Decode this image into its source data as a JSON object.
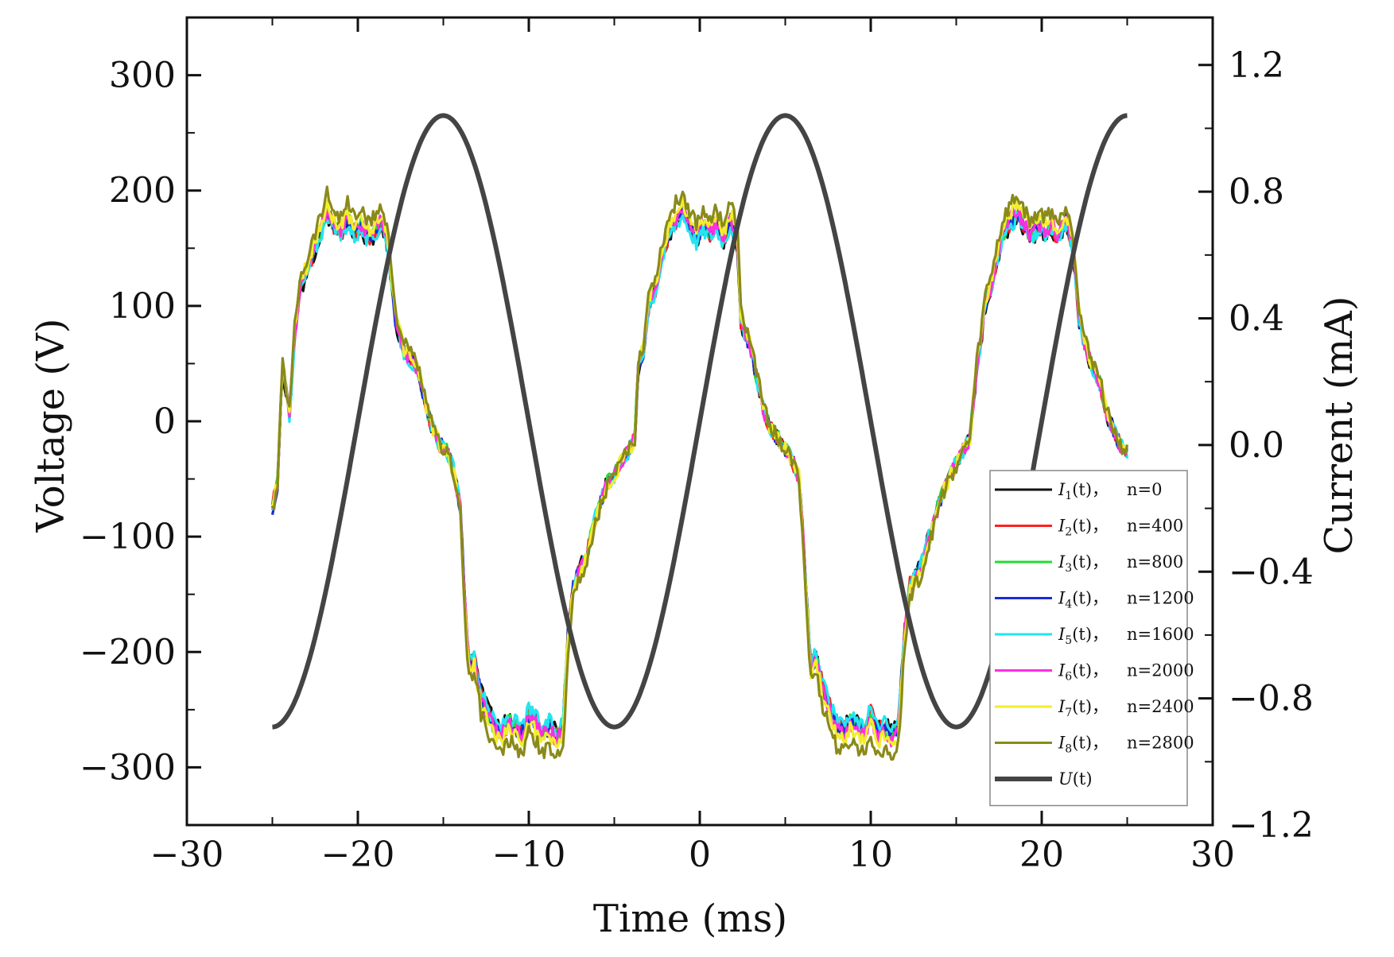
{
  "chart_data": {
    "type": "line",
    "title": "",
    "xlabel": "Time (ms)",
    "ylabel": "Voltage (V)",
    "y2label": "Current (mA)",
    "xlim": [
      -30,
      30
    ],
    "ylim": [
      -350,
      350
    ],
    "y2lim": [
      -1.2,
      1.35
    ],
    "xticks": [
      -30,
      -20,
      -10,
      0,
      10,
      20,
      30
    ],
    "xtick_labels": [
      "−30",
      "−20",
      "−10",
      "0",
      "10",
      "20",
      "30"
    ],
    "yticks": [
      -300,
      -200,
      -100,
      0,
      100,
      200,
      300
    ],
    "ytick_labels": [
      "−300",
      "−200",
      "−100",
      "0",
      "100",
      "200",
      "300"
    ],
    "y2ticks": [
      -1.2,
      -0.8,
      -0.4,
      0.0,
      0.4,
      0.8,
      1.2
    ],
    "y2tick_labels": [
      "−1.2",
      "−0.8",
      "−0.4",
      "0.0",
      "0.4",
      "0.8",
      "1.2"
    ],
    "grid": false,
    "legend_position": "bottom-right",
    "voltage_series": {
      "name": "U(t)",
      "symbol": "U",
      "arg": "(t)",
      "color": "#444444",
      "axis": "left",
      "amplitude_V": 265,
      "frequency_Hz": 50,
      "peak_time_ms": 5,
      "x_range_ms": [
        -25,
        25
      ]
    },
    "current_base": {
      "axis": "right",
      "x_range_ms": [
        -25,
        25
      ],
      "x": [
        -25,
        -24.7,
        -24.4,
        -24.0,
        -23.7,
        -23.4,
        -23.0,
        -22.6,
        -22.2,
        -21.8,
        -21.4,
        -21.0,
        -20.6,
        -20.2,
        -19.8,
        -19.4,
        -19.0,
        -18.6,
        -18.2,
        -17.8,
        -17.6,
        -17.3,
        -17.0,
        -16.6,
        -16.3,
        -16.0,
        -15.6,
        -15.2,
        -14.8,
        -14.4,
        -14.0,
        -13.8,
        -13.6,
        -13.5,
        -13.2,
        -12.8,
        -12.4,
        -12.0,
        -11.6,
        -11.2,
        -10.8,
        -10.4,
        -10.0,
        -9.6,
        -9.2,
        -8.8,
        -8.4,
        -8.0,
        -7.7,
        -7.4,
        -7.0,
        -6.6,
        -6.2,
        -5.8,
        -5.4,
        -5.0,
        -4.6,
        -4.2,
        -3.8,
        -3.6,
        -3.3,
        -3.0,
        -2.6,
        -2.2,
        -1.8,
        -1.4,
        -1.0,
        -0.6,
        -0.2,
        0.2,
        0.6,
        1.0,
        1.4,
        1.8,
        2.2,
        2.4,
        2.7,
        3.0,
        3.4,
        3.8,
        4.2,
        4.6,
        5.0,
        5.4,
        5.8,
        6.0,
        6.2,
        6.4,
        6.5,
        6.8,
        7.2,
        7.6,
        8.0,
        8.4,
        8.8,
        9.2,
        9.6,
        10.0,
        10.4,
        10.8,
        11.2,
        11.6,
        12.0,
        12.3,
        12.6,
        13.0,
        13.4,
        13.8,
        14.2,
        14.6,
        15.0,
        15.4,
        15.8,
        16.2,
        16.4,
        16.7,
        17.0,
        17.4,
        17.8,
        18.2,
        18.6,
        19.0,
        19.4,
        19.8,
        20.2,
        20.6,
        21.0,
        21.4,
        21.8,
        22.2,
        22.6,
        23.0,
        23.4,
        23.8,
        24.2,
        24.6,
        25.0
      ],
      "current_mA": [
        -0.2,
        -0.12,
        0.25,
        0.1,
        0.35,
        0.5,
        0.55,
        0.62,
        0.68,
        0.75,
        0.7,
        0.68,
        0.72,
        0.68,
        0.7,
        0.66,
        0.68,
        0.72,
        0.62,
        0.4,
        0.36,
        0.3,
        0.28,
        0.25,
        0.2,
        0.12,
        0.05,
        0.0,
        -0.02,
        -0.08,
        -0.2,
        -0.45,
        -0.62,
        -0.7,
        -0.68,
        -0.8,
        -0.86,
        -0.9,
        -0.92,
        -0.88,
        -0.9,
        -0.92,
        -0.86,
        -0.88,
        -0.92,
        -0.9,
        -0.93,
        -0.9,
        -0.6,
        -0.45,
        -0.4,
        -0.35,
        -0.25,
        -0.18,
        -0.12,
        -0.1,
        -0.05,
        -0.02,
        0.02,
        0.25,
        0.3,
        0.45,
        0.5,
        0.6,
        0.68,
        0.72,
        0.75,
        0.7,
        0.66,
        0.7,
        0.68,
        0.7,
        0.66,
        0.72,
        0.65,
        0.4,
        0.35,
        0.3,
        0.2,
        0.1,
        0.05,
        0.02,
        -0.01,
        -0.05,
        -0.1,
        -0.25,
        -0.45,
        -0.62,
        -0.7,
        -0.68,
        -0.78,
        -0.84,
        -0.9,
        -0.92,
        -0.88,
        -0.9,
        -0.92,
        -0.86,
        -0.92,
        -0.9,
        -0.93,
        -0.9,
        -0.6,
        -0.45,
        -0.42,
        -0.38,
        -0.3,
        -0.22,
        -0.15,
        -0.1,
        -0.06,
        -0.02,
        0.02,
        0.25,
        0.32,
        0.45,
        0.5,
        0.6,
        0.68,
        0.72,
        0.74,
        0.7,
        0.66,
        0.7,
        0.68,
        0.7,
        0.66,
        0.72,
        0.65,
        0.4,
        0.3,
        0.25,
        0.2,
        0.1,
        0.05,
        0.0,
        -0.02
      ]
    },
    "series": [
      {
        "name": "I1(t)， n=0",
        "symbol": "I",
        "sub": "1",
        "arg": "(t)，",
        "n_label": "n=0",
        "color": "#111111",
        "amp": 0.97,
        "seed": 1
      },
      {
        "name": "I2(t)， n=400",
        "symbol": "I",
        "sub": "2",
        "arg": "(t)，",
        "n_label": "n=400",
        "color": "#ff1f1f",
        "amp": 0.98,
        "seed": 2
      },
      {
        "name": "I3(t)， n=800",
        "symbol": "I",
        "sub": "3",
        "arg": "(t)，",
        "n_label": "n=800",
        "color": "#22dd33",
        "amp": 0.99,
        "seed": 3
      },
      {
        "name": "I4(t)， n=1200",
        "symbol": "I",
        "sub": "4",
        "arg": "(t)，",
        "n_label": "n=1200",
        "color": "#1a2ad8",
        "amp": 0.99,
        "seed": 4
      },
      {
        "name": "I5(t)， n=1600",
        "symbol": "I",
        "sub": "5",
        "arg": "(t)，",
        "n_label": "n=1600",
        "color": "#22e5f2",
        "amp": 0.97,
        "seed": 5
      },
      {
        "name": "I6(t)， n=2000",
        "symbol": "I",
        "sub": "6",
        "arg": "(t)，",
        "n_label": "n=2000",
        "color": "#ff2ee0",
        "amp": 1.0,
        "seed": 6
      },
      {
        "name": "I7(t)， n=2400",
        "symbol": "I",
        "sub": "7",
        "arg": "(t)，",
        "n_label": "n=2400",
        "color": "#f2ee2a",
        "amp": 1.02,
        "seed": 7
      },
      {
        "name": "I8(t)， n=2800",
        "symbol": "I",
        "sub": "8",
        "arg": "(t)，",
        "n_label": "n=2800",
        "color": "#8a8a1a",
        "amp": 1.06,
        "seed": 8
      }
    ]
  }
}
